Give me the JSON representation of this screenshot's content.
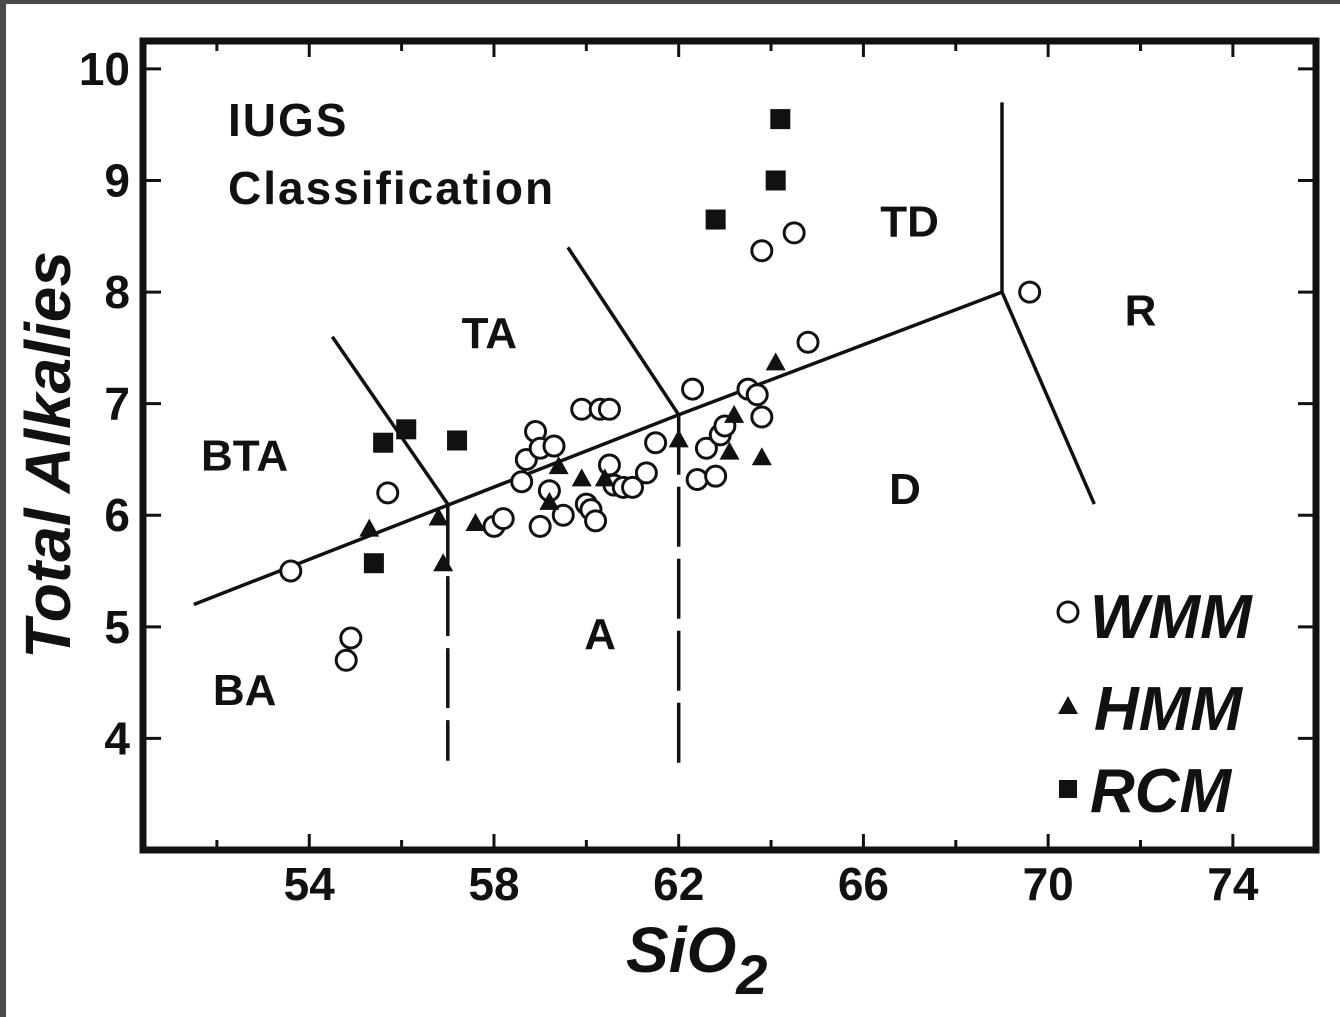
{
  "chart_data": {
    "type": "scatter",
    "title": "",
    "annotation_lines": [
      "IUGS",
      "Classification"
    ],
    "xlabel": "SiO",
    "xlabel_subscript": "2",
    "ylabel": "Total Alkalies",
    "xlim": [
      50.4,
      75.8
    ],
    "ylim": [
      3.0,
      10.25
    ],
    "xticks": [
      54,
      58,
      62,
      66,
      70,
      74
    ],
    "yticks": [
      4,
      5,
      6,
      7,
      8,
      9,
      10
    ],
    "grid": false,
    "legend_position": "bottom-right",
    "regions": [
      {
        "label": "IUGS"
      },
      {
        "label": "BTA",
        "x": 52.6,
        "y": 6.4
      },
      {
        "label": "TA",
        "x": 57.9,
        "y": 7.5
      },
      {
        "label": "TD",
        "x": 67.0,
        "y": 8.5
      },
      {
        "label": "R",
        "x": 72.0,
        "y": 7.7
      },
      {
        "label": "BA",
        "x": 52.6,
        "y": 4.3
      },
      {
        "label": "A",
        "x": 60.3,
        "y": 4.8
      },
      {
        "label": "D",
        "x": 66.9,
        "y": 6.1
      }
    ],
    "boundaries": [
      {
        "points": [
          [
            51.5,
            5.2
          ],
          [
            62.0,
            6.9
          ],
          [
            69.0,
            8.0
          ]
        ]
      },
      {
        "points": [
          [
            54.5,
            7.6
          ],
          [
            57.0,
            6.1
          ]
        ],
        "dashed_part": [
          [
            55.9,
            6.75
          ],
          [
            57.0,
            6.1
          ]
        ]
      },
      {
        "points": [
          [
            57.0,
            6.1
          ],
          [
            57.0,
            3.8
          ]
        ],
        "dashed": true
      },
      {
        "points": [
          [
            59.6,
            8.4
          ],
          [
            62.0,
            6.9
          ]
        ]
      },
      {
        "points": [
          [
            62.0,
            6.9
          ],
          [
            62.0,
            3.7
          ]
        ],
        "dashed": true
      },
      {
        "points": [
          [
            69.0,
            9.7
          ],
          [
            69.0,
            8.0
          ]
        ]
      },
      {
        "points": [
          [
            69.0,
            8.0
          ],
          [
            71.0,
            6.1
          ]
        ]
      }
    ],
    "series": [
      {
        "name": "WMM",
        "marker": "open-circle",
        "points": [
          [
            53.6,
            5.5
          ],
          [
            54.9,
            4.9
          ],
          [
            54.8,
            4.7
          ],
          [
            55.7,
            6.2
          ],
          [
            58.0,
            5.9
          ],
          [
            58.2,
            5.97
          ],
          [
            58.6,
            6.3
          ],
          [
            58.7,
            6.5
          ],
          [
            58.9,
            6.75
          ],
          [
            59.0,
            6.6
          ],
          [
            59.0,
            5.9
          ],
          [
            59.2,
            6.22
          ],
          [
            59.3,
            6.62
          ],
          [
            59.5,
            6.0
          ],
          [
            59.9,
            6.95
          ],
          [
            60.0,
            6.1
          ],
          [
            60.1,
            6.05
          ],
          [
            60.2,
            5.95
          ],
          [
            60.3,
            6.95
          ],
          [
            60.5,
            6.95
          ],
          [
            60.5,
            6.45
          ],
          [
            60.6,
            6.27
          ],
          [
            60.8,
            6.25
          ],
          [
            61.0,
            6.25
          ],
          [
            61.3,
            6.38
          ],
          [
            61.5,
            6.65
          ],
          [
            62.3,
            7.13
          ],
          [
            62.4,
            6.32
          ],
          [
            62.6,
            6.6
          ],
          [
            62.8,
            6.35
          ],
          [
            62.9,
            6.72
          ],
          [
            63.0,
            6.8
          ],
          [
            63.5,
            7.13
          ],
          [
            63.7,
            7.08
          ],
          [
            63.8,
            6.88
          ],
          [
            63.8,
            8.37
          ],
          [
            64.5,
            8.53
          ],
          [
            64.8,
            7.55
          ],
          [
            69.6,
            8.0
          ]
        ]
      },
      {
        "name": "HMM",
        "marker": "filled-triangle",
        "points": [
          [
            55.3,
            5.88
          ],
          [
            56.8,
            5.98
          ],
          [
            56.9,
            5.57
          ],
          [
            57.6,
            5.93
          ],
          [
            59.2,
            6.12
          ],
          [
            59.4,
            6.44
          ],
          [
            59.9,
            6.33
          ],
          [
            60.4,
            6.33
          ],
          [
            62.0,
            6.68
          ],
          [
            63.1,
            6.57
          ],
          [
            63.2,
            6.9
          ],
          [
            63.8,
            6.52
          ],
          [
            64.1,
            7.37
          ]
        ]
      },
      {
        "name": "RCM",
        "marker": "filled-square",
        "points": [
          [
            55.4,
            5.57
          ],
          [
            55.6,
            6.65
          ],
          [
            56.1,
            6.77
          ],
          [
            57.2,
            6.67
          ],
          [
            62.8,
            8.65
          ],
          [
            64.1,
            9.0
          ],
          [
            64.2,
            9.55
          ]
        ]
      }
    ]
  },
  "legend": [
    {
      "label": "WMM",
      "marker": "open-circle"
    },
    {
      "label": "HMM",
      "marker": "filled-triangle"
    },
    {
      "label": "RCM",
      "marker": "filled-square"
    }
  ]
}
